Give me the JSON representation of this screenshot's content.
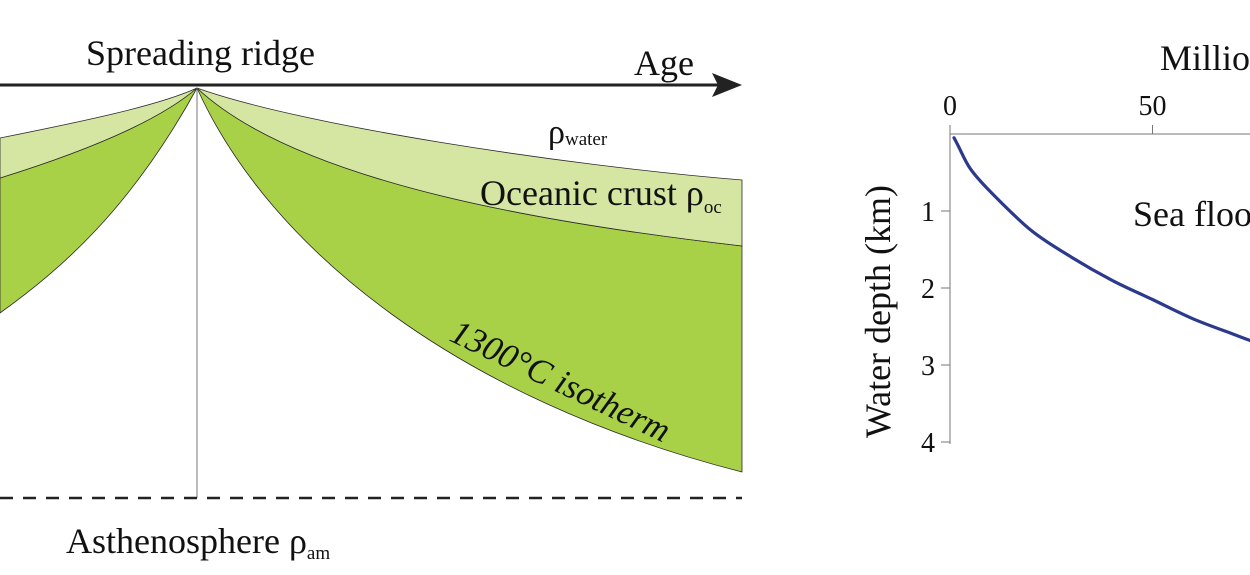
{
  "diagram": {
    "ridge_label": "Spreading ridge",
    "age_label": "Age",
    "water_rho": "ρ",
    "water_sub": "water",
    "crust_label": "Oceanic crust ρ",
    "crust_sub": "oc",
    "isotherm_label": "1300°C isotherm",
    "asthenosphere_label": "Asthenosphere ρ",
    "asthenosphere_sub": "am",
    "colors": {
      "crust": "#d5e6a2",
      "lithosphere": "#a8d148",
      "outline": "#2a2a2a"
    }
  },
  "chart": {
    "title": "Millio",
    "ylabel": "Water depth (km)",
    "curve_label": "Sea floo",
    "x_ticks": [
      "0",
      "50"
    ],
    "y_ticks": [
      "1",
      "2",
      "3",
      "4"
    ],
    "curve_color": "#2b3a8c"
  },
  "chart_data": {
    "type": "line",
    "title": "Millio",
    "xlabel": "",
    "ylabel": "Water depth (km)",
    "xlim": [
      0,
      150
    ],
    "ylim": [
      0,
      4
    ],
    "y_inverted": true,
    "series": [
      {
        "name": "Sea floo",
        "x": [
          1,
          2,
          5,
          10,
          20,
          30,
          40,
          50,
          60,
          70,
          75
        ],
        "y": [
          0.05,
          0.15,
          0.45,
          0.75,
          1.25,
          1.6,
          1.9,
          2.15,
          2.4,
          2.6,
          2.7
        ]
      }
    ]
  }
}
